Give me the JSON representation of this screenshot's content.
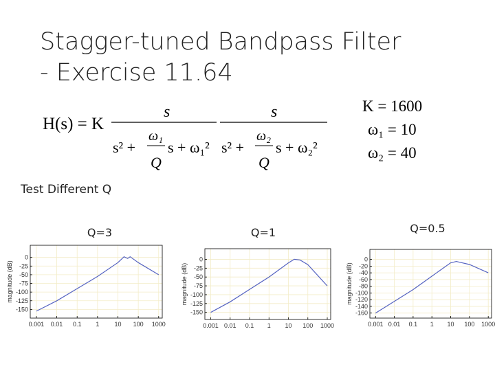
{
  "slide": {
    "title_lines": [
      "Stagger-tuned Bandpass Filter",
      "- Exercise 11.64"
    ],
    "formula": {
      "lhs": "H(s) = K",
      "fractions": [
        {
          "num": "s",
          "before": "s² +",
          "frac_num": "ω₁",
          "frac_den": "Q",
          "after": "s + ω₁²"
        },
        {
          "num": "s",
          "before": "s² +",
          "frac_num": "ω₂",
          "frac_den": "Q",
          "after": "s + ω₂²"
        }
      ]
    },
    "params": [
      "K = 1600",
      "ω₁ = 10",
      "ω₂ = 40"
    ],
    "subtitle": "Test Different Q"
  },
  "chart_data": [
    {
      "type": "line",
      "title": "Q=3",
      "ylabel": "magnitude (dB)",
      "log_x": true,
      "grid": true,
      "x": [
        0.001,
        0.01,
        0.1,
        1,
        10,
        20,
        30,
        40,
        100,
        1000
      ],
      "series": [
        {
          "color": "#5563c1",
          "values": [
            -155,
            -125,
            -90,
            -55,
            -15,
            2,
            -3,
            2,
            -15,
            -50
          ]
        }
      ],
      "xlim": [
        0.0005,
        1500
      ],
      "ylim": [
        -175,
        35
      ],
      "xticks": [
        0.001,
        0.01,
        0.1,
        1,
        10,
        100,
        1000
      ],
      "yticks": [
        0,
        -25,
        -50,
        -75,
        -100,
        -125,
        -150
      ]
    },
    {
      "type": "line",
      "title": "Q=1",
      "ylabel": "magnitude (dB)",
      "log_x": true,
      "grid": true,
      "x": [
        0.001,
        0.01,
        0.1,
        1,
        10,
        20,
        40,
        100,
        1000
      ],
      "series": [
        {
          "color": "#5563c1",
          "values": [
            -150,
            -120,
            -85,
            -50,
            -10,
            0,
            -2,
            -15,
            -75
          ]
        }
      ],
      "xlim": [
        0.0005,
        1500
      ],
      "ylim": [
        -170,
        30
      ],
      "xticks": [
        0.001,
        0.01,
        0.1,
        1,
        10,
        100,
        1000
      ],
      "yticks": [
        0,
        -25,
        -50,
        -75,
        -100,
        -125,
        -150
      ]
    },
    {
      "type": "line",
      "title": "Q=0.5",
      "ylabel": "magnitude (dB)",
      "log_x": true,
      "grid": true,
      "x": [
        0.001,
        0.01,
        0.1,
        1,
        10,
        20,
        100,
        1000
      ],
      "series": [
        {
          "color": "#5563c1",
          "values": [
            -160,
            -125,
            -90,
            -50,
            -10,
            -6,
            -15,
            -40
          ]
        }
      ],
      "xlim": [
        0.0005,
        1500
      ],
      "ylim": [
        -175,
        30
      ],
      "xticks": [
        0.001,
        0.01,
        0.1,
        1,
        10,
        100,
        1000
      ],
      "yticks": [
        0,
        -20,
        -40,
        -60,
        -80,
        -100,
        -120,
        -140,
        -160
      ]
    }
  ]
}
